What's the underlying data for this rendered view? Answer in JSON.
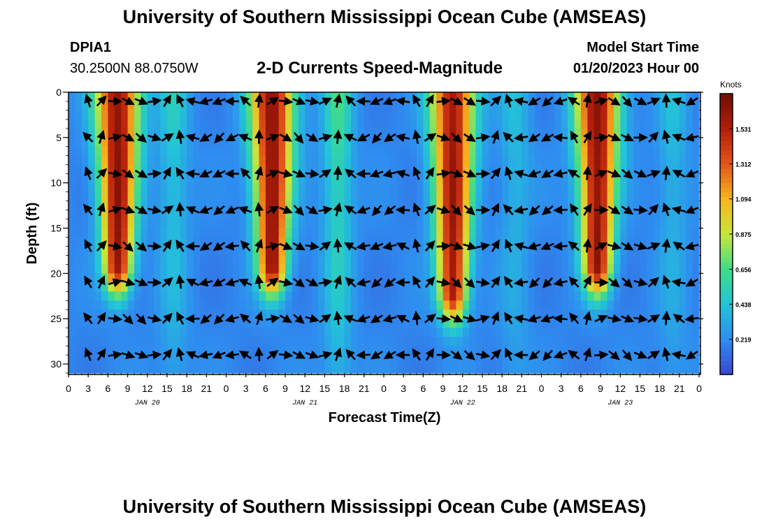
{
  "header": {
    "title": "University of Southern Mississippi Ocean Cube (AMSEAS)",
    "station_id": "DPIA1",
    "station_coords": "30.2500N  88.0750W",
    "chart_title": "2-D Currents Speed-Magnitude",
    "model_start_label": "Model Start Time",
    "model_start_value": "01/20/2023 Hour 00"
  },
  "footer": {
    "title": "University of Southern Mississippi Ocean Cube (AMSEAS)"
  },
  "chart_data": {
    "type": "heatmap",
    "title": "2-D Currents Speed-Magnitude",
    "xlabel": "Forecast Time(Z)",
    "ylabel": "Depth (ft)",
    "x_tick_labels": [
      "0",
      "3",
      "6",
      "9",
      "12",
      "15",
      "18",
      "21",
      "0",
      "3",
      "6",
      "9",
      "12",
      "15",
      "18",
      "21",
      "0",
      "3",
      "6",
      "9",
      "12",
      "15",
      "18",
      "21",
      "0",
      "3",
      "6",
      "9",
      "12",
      "15",
      "18",
      "21",
      "0"
    ],
    "x_date_labels": [
      {
        "hour": 12,
        "label": "JAN 20"
      },
      {
        "hour": 36,
        "label": "JAN 21"
      },
      {
        "hour": 60,
        "label": "JAN 22"
      },
      {
        "hour": 84,
        "label": "JAN 23"
      }
    ],
    "xlim_hours": [
      0,
      96
    ],
    "y_ticks": [
      0,
      5,
      10,
      15,
      20,
      25,
      30
    ],
    "ylim_ft": [
      0,
      31
    ],
    "colorbar": {
      "label": "Knots",
      "ticks": [
        1.531,
        1.312,
        1.094,
        0.875,
        0.656,
        0.438,
        0.219
      ],
      "range": [
        0,
        1.75
      ],
      "colors": [
        "#3a46d0",
        "#2f8cf0",
        "#22c4d8",
        "#3fdc8a",
        "#c8e63a",
        "#f6b51d",
        "#e4561a",
        "#b41d0a",
        "#6e1006"
      ]
    },
    "high_speed_cores": [
      {
        "center_hour": 7.5,
        "peak_knots": 1.65,
        "max_depth_ft": 22
      },
      {
        "center_hour": 31.0,
        "peak_knots": 1.65,
        "max_depth_ft": 22
      },
      {
        "center_hour": 58.5,
        "peak_knots": 1.6,
        "max_depth_ft": 25
      },
      {
        "center_hour": 80.5,
        "peak_knots": 1.65,
        "max_depth_ft": 22
      }
    ],
    "moderate_bands": [
      {
        "center_hour": 16.0,
        "knots": 0.5
      },
      {
        "center_hour": 41.0,
        "knots": 0.65
      },
      {
        "center_hour": 68.0,
        "knots": 0.42
      },
      {
        "center_hour": 92.0,
        "knots": 0.42
      }
    ],
    "vector_rows_ft": [
      1,
      5,
      9,
      13,
      17,
      21,
      25,
      29
    ],
    "vector_cols_hours": [
      3,
      5,
      7,
      9,
      11,
      13,
      15,
      17,
      19,
      21,
      23,
      25,
      27,
      29,
      31,
      33,
      35,
      37,
      39,
      41,
      43,
      45,
      47,
      49,
      51,
      53,
      55,
      57,
      59,
      61,
      63,
      65,
      67,
      69,
      71,
      73,
      75,
      77,
      79,
      81,
      83,
      85,
      87,
      89,
      91,
      93,
      95
    ]
  }
}
